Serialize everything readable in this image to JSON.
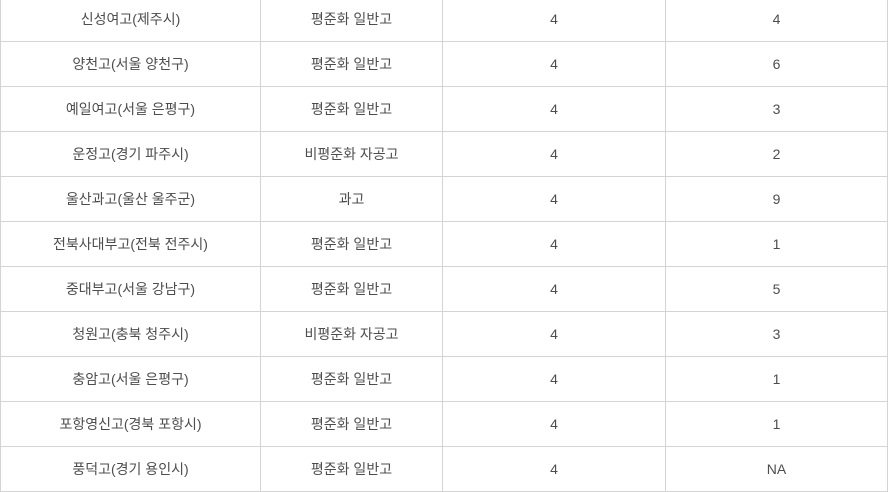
{
  "colors": {
    "border": "#d4d4d4",
    "text": "#4d4d4d",
    "background": "#ffffff"
  },
  "table": {
    "rows": [
      [
        "신성여고(제주시)",
        "평준화 일반고",
        "4",
        "4"
      ],
      [
        "양천고(서울 양천구)",
        "평준화 일반고",
        "4",
        "6"
      ],
      [
        "예일여고(서울 은평구)",
        "평준화 일반고",
        "4",
        "3"
      ],
      [
        "운정고(경기 파주시)",
        "비평준화 자공고",
        "4",
        "2"
      ],
      [
        "울산과고(울산 울주군)",
        "과고",
        "4",
        "9"
      ],
      [
        "전북사대부고(전북 전주시)",
        "평준화 일반고",
        "4",
        "1"
      ],
      [
        "중대부고(서울 강남구)",
        "평준화 일반고",
        "4",
        "5"
      ],
      [
        "청원고(충북 청주시)",
        "비평준화 자공고",
        "4",
        "3"
      ],
      [
        "충암고(서울 은평구)",
        "평준화 일반고",
        "4",
        "1"
      ],
      [
        "포항영신고(경북 포항시)",
        "평준화 일반고",
        "4",
        "1"
      ],
      [
        "풍덕고(경기 용인시)",
        "평준화 일반고",
        "4",
        "NA"
      ]
    ]
  }
}
